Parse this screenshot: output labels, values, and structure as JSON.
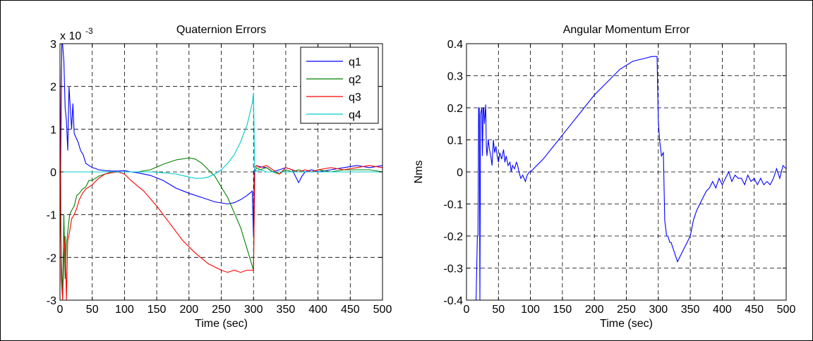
{
  "chart_data": [
    {
      "type": "line",
      "title": "Quaternion Errors",
      "xlabel": "Time (sec)",
      "ylabel": "",
      "scale_label": "x 10",
      "scale_exponent": "-3",
      "xlim": [
        0,
        500
      ],
      "ylim": [
        -3,
        3
      ],
      "xticks": [
        0,
        50,
        100,
        150,
        200,
        250,
        300,
        350,
        400,
        450,
        500
      ],
      "yticks": [
        -3,
        -2,
        -1,
        0,
        1,
        2,
        3
      ],
      "grid": true,
      "legend_position": "top-right",
      "series": [
        {
          "name": "q1",
          "color": "#0000ff",
          "x": [
            0,
            3,
            6,
            8,
            10,
            12,
            14,
            16,
            18,
            20,
            22,
            25,
            28,
            32,
            36,
            40,
            45,
            50,
            55,
            60,
            70,
            80,
            90,
            100,
            110,
            120,
            140,
            160,
            180,
            200,
            220,
            240,
            260,
            270,
            280,
            290,
            298,
            300,
            301,
            302,
            305,
            310,
            320,
            330,
            340,
            350,
            360,
            365,
            370,
            375,
            380,
            390,
            400,
            420,
            440,
            460,
            480,
            500
          ],
          "y": [
            -1.5,
            3.2,
            2.6,
            1.5,
            1.2,
            0.5,
            2.0,
            1.5,
            1.0,
            1.6,
            0.9,
            0.8,
            0.7,
            0.5,
            0.4,
            0.2,
            0.15,
            0.1,
            0.08,
            0.05,
            0.03,
            0.02,
            0.02,
            0.03,
            0.0,
            -0.02,
            -0.08,
            -0.2,
            -0.38,
            -0.5,
            -0.6,
            -0.7,
            -0.75,
            -0.72,
            -0.65,
            -0.55,
            -0.45,
            -1.5,
            0.0,
            0.1,
            0.15,
            0.12,
            0.1,
            0.0,
            0.05,
            0.1,
            0.05,
            -0.1,
            -0.25,
            -0.1,
            0.0,
            0.05,
            0.0,
            0.05,
            0.1,
            0.15,
            0.1,
            0.15
          ]
        },
        {
          "name": "q2",
          "color": "#008000",
          "x": [
            0,
            2,
            4,
            6,
            8,
            10,
            12,
            15,
            18,
            22,
            26,
            30,
            35,
            40,
            45,
            50,
            60,
            70,
            80,
            90,
            100,
            120,
            140,
            160,
            180,
            200,
            210,
            220,
            240,
            260,
            280,
            290,
            298,
            300,
            302,
            305,
            310,
            320,
            330,
            340,
            350,
            360,
            370,
            380,
            390,
            400,
            420,
            440,
            460,
            480,
            500
          ],
          "y": [
            0.0,
            -2.0,
            -2.9,
            -1.0,
            -2.5,
            -1.7,
            -1.4,
            -1.0,
            -0.9,
            -0.8,
            -0.55,
            -0.5,
            -0.4,
            -0.35,
            -0.2,
            -0.2,
            -0.1,
            -0.05,
            0.0,
            0.0,
            0.0,
            0.0,
            0.05,
            0.18,
            0.28,
            0.33,
            0.3,
            0.2,
            -0.1,
            -0.6,
            -1.3,
            -1.8,
            -2.2,
            -2.3,
            0.0,
            0.1,
            0.05,
            0.1,
            0.0,
            -0.05,
            0.05,
            0.0,
            0.05,
            0.0,
            0.0,
            0.05,
            0.0,
            0.05,
            0.05,
            0.05,
            0.0
          ]
        },
        {
          "name": "q3",
          "color": "#ff0000",
          "x": [
            0,
            2,
            4,
            6,
            8,
            10,
            12,
            15,
            18,
            22,
            26,
            30,
            35,
            40,
            50,
            60,
            70,
            80,
            90,
            100,
            110,
            130,
            150,
            170,
            190,
            210,
            230,
            250,
            260,
            270,
            280,
            290,
            298,
            300,
            302,
            305,
            310,
            320,
            330,
            340,
            350,
            360,
            370,
            380,
            390,
            400,
            420,
            440,
            460,
            480,
            500
          ],
          "y": [
            2.5,
            -2.5,
            -3.0,
            -2.0,
            -1.5,
            -3.0,
            -1.6,
            -1.4,
            -1.1,
            -1.0,
            -0.85,
            -0.65,
            -0.5,
            -0.4,
            -0.3,
            -0.15,
            -0.05,
            -0.02,
            0.0,
            -0.05,
            -0.2,
            -0.45,
            -0.8,
            -1.2,
            -1.6,
            -1.9,
            -2.15,
            -2.3,
            -2.35,
            -2.3,
            -2.35,
            -2.3,
            -2.3,
            -2.3,
            0.1,
            0.15,
            0.1,
            0.15,
            0.05,
            -0.05,
            0.1,
            0.05,
            0.0,
            0.05,
            0.0,
            0.05,
            0.1,
            0.05,
            0.1,
            0.15,
            0.1
          ]
        },
        {
          "name": "q4",
          "color": "#00cccc",
          "x": [
            0,
            50,
            100,
            120,
            140,
            160,
            180,
            200,
            210,
            220,
            230,
            240,
            250,
            260,
            270,
            280,
            290,
            298,
            300,
            302,
            310,
            320,
            340,
            360,
            380,
            400,
            420,
            440,
            460,
            480,
            500
          ],
          "y": [
            0.0,
            0.0,
            0.0,
            0.0,
            0.0,
            -0.02,
            -0.05,
            -0.12,
            -0.15,
            -0.15,
            -0.12,
            -0.05,
            0.05,
            0.2,
            0.4,
            0.7,
            1.1,
            1.6,
            1.85,
            0.0,
            0.05,
            0.0,
            0.0,
            0.0,
            0.0,
            0.0,
            0.0,
            0.0,
            0.0,
            0.0,
            0.0
          ]
        }
      ]
    },
    {
      "type": "line",
      "title": "Angular Momentum Error",
      "xlabel": "Time (sec)",
      "ylabel": "Nms",
      "xlim": [
        0,
        500
      ],
      "ylim": [
        -0.4,
        0.4
      ],
      "xticks": [
        0,
        50,
        100,
        150,
        200,
        250,
        300,
        350,
        400,
        450,
        500
      ],
      "yticks": [
        -0.4,
        -0.3,
        -0.2,
        -0.1,
        0,
        0.1,
        0.2,
        0.3,
        0.4
      ],
      "grid": true,
      "series": [
        {
          "name": "",
          "color": "#0000ff",
          "x": [
            15,
            17,
            18,
            19,
            20,
            21,
            22,
            24,
            25,
            26,
            27,
            28,
            30,
            31,
            32,
            34,
            36,
            38,
            40,
            42,
            44,
            46,
            48,
            50,
            52,
            55,
            58,
            60,
            62,
            65,
            68,
            70,
            72,
            75,
            78,
            80,
            82,
            85,
            88,
            90,
            92,
            95,
            98,
            100,
            120,
            140,
            160,
            180,
            200,
            220,
            240,
            260,
            280,
            290,
            298,
            300,
            302,
            305,
            308,
            310,
            313,
            315,
            318,
            320,
            325,
            330,
            335,
            340,
            345,
            350,
            355,
            360,
            365,
            370,
            375,
            380,
            385,
            390,
            395,
            400,
            405,
            410,
            415,
            420,
            425,
            430,
            435,
            440,
            445,
            450,
            455,
            460,
            465,
            470,
            475,
            480,
            485,
            490,
            495,
            500
          ],
          "y": [
            -0.4,
            -0.2,
            -0.2,
            0.2,
            0.2,
            -0.4,
            0.18,
            0.2,
            0.05,
            0.2,
            0.2,
            0.15,
            0.21,
            0.08,
            0.05,
            0.1,
            0.07,
            0.05,
            0.02,
            0.1,
            0.06,
            0.08,
            0.05,
            0.03,
            0.06,
            0.04,
            0.07,
            0.03,
            0.05,
            0.02,
            0.03,
            0.0,
            0.02,
            0.01,
            0.03,
            0.02,
            0.0,
            -0.02,
            -0.01,
            -0.02,
            -0.03,
            -0.01,
            0.0,
            0.0,
            0.04,
            0.09,
            0.14,
            0.19,
            0.24,
            0.28,
            0.32,
            0.345,
            0.355,
            0.36,
            0.36,
            0.16,
            0.1,
            0.05,
            0.06,
            -0.15,
            -0.2,
            -0.2,
            -0.22,
            -0.22,
            -0.25,
            -0.28,
            -0.26,
            -0.24,
            -0.22,
            -0.2,
            -0.15,
            -0.12,
            -0.1,
            -0.08,
            -0.06,
            -0.05,
            -0.03,
            -0.05,
            -0.02,
            -0.04,
            -0.02,
            0.0,
            -0.03,
            -0.01,
            -0.02,
            -0.02,
            -0.04,
            -0.01,
            -0.03,
            -0.02,
            -0.04,
            -0.02,
            -0.04,
            -0.03,
            -0.04,
            -0.02,
            0.01,
            -0.02,
            0.02,
            0.01
          ]
        }
      ]
    }
  ]
}
